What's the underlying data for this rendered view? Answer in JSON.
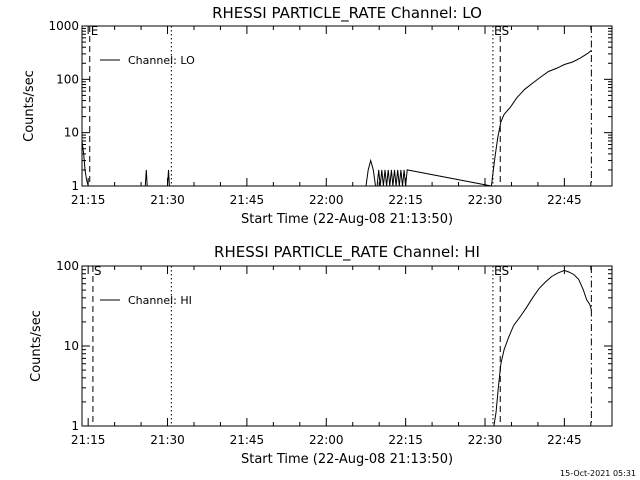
{
  "footer_timestamp": "15-Oct-2021 05:31",
  "chart_data": [
    {
      "type": "line",
      "title": "RHESSI PARTICLE_RATE Channel: LO",
      "xlabel": "Start Time (22-Aug-08 21:13:50)",
      "ylabel": "Counts/sec",
      "yscale": "log",
      "ylim": [
        1,
        1000
      ],
      "xlim": [
        21.2306,
        22.9
      ],
      "xticks": [
        21.25,
        21.5,
        21.75,
        22.0,
        22.25,
        22.5,
        22.75
      ],
      "xtick_labels": [
        "21:15",
        "21:30",
        "21:45",
        "22:00",
        "22:15",
        "22:30",
        "22:45"
      ],
      "yticks": [
        1,
        10,
        100,
        1000
      ],
      "ytick_labels": [
        "1",
        "10",
        "100",
        "1000"
      ],
      "legend": {
        "label": "Channel: LO",
        "placement": "top-left"
      },
      "markers": [
        {
          "x": 21.255,
          "style": "dashed",
          "label": "E"
        },
        {
          "x": 21.512,
          "style": "dotted",
          "label": ""
        },
        {
          "x": 22.525,
          "style": "dotted",
          "label": "ES"
        },
        {
          "x": 22.548,
          "style": "dashed",
          "label": ""
        },
        {
          "x": 22.835,
          "style": "dashdot",
          "label": ""
        }
      ],
      "series": [
        {
          "name": "Channel: LO",
          "x": [
            21.2306,
            21.236,
            21.24,
            21.245,
            21.25,
            21.43,
            21.433,
            21.436,
            21.5,
            21.503,
            21.506,
            22.125,
            22.132,
            22.14,
            22.148,
            22.155,
            22.16,
            22.165,
            22.17,
            22.175,
            22.18,
            22.185,
            22.19,
            22.195,
            22.2,
            22.205,
            22.21,
            22.215,
            22.22,
            22.225,
            22.23,
            22.235,
            22.24,
            22.245,
            22.25,
            22.255,
            22.52,
            22.53,
            22.54,
            22.55,
            22.56,
            22.58,
            22.6,
            22.625,
            22.65,
            22.675,
            22.7,
            22.725,
            22.75,
            22.775,
            22.8,
            22.825,
            22.835
          ],
          "values": [
            7,
            4,
            2,
            1.3,
            1,
            1,
            2,
            1,
            1,
            2,
            1,
            1,
            2,
            3,
            2,
            1,
            1,
            2,
            1,
            2,
            1,
            2,
            1,
            2,
            1,
            2,
            1,
            2,
            1,
            2,
            1,
            2,
            1,
            2,
            1,
            2,
            1,
            3,
            8,
            16,
            22,
            30,
            45,
            65,
            85,
            110,
            140,
            160,
            190,
            210,
            250,
            310,
            350
          ]
        }
      ]
    },
    {
      "type": "line",
      "title": "RHESSI PARTICLE_RATE Channel: HI",
      "xlabel": "Start Time (22-Aug-08 21:13:50)",
      "ylabel": "Counts/sec",
      "yscale": "log",
      "ylim": [
        1,
        100
      ],
      "xlim": [
        21.2306,
        22.9
      ],
      "xticks": [
        21.25,
        21.5,
        21.75,
        22.0,
        22.25,
        22.5,
        22.75
      ],
      "xtick_labels": [
        "21:15",
        "21:30",
        "21:45",
        "22:00",
        "22:15",
        "22:30",
        "22:45"
      ],
      "yticks": [
        1,
        10,
        100
      ],
      "ytick_labels": [
        "1",
        "10",
        "100"
      ],
      "legend": {
        "label": "Channel: HI",
        "placement": "top-left"
      },
      "markers": [
        {
          "x": 21.265,
          "style": "dashed",
          "label": "S"
        },
        {
          "x": 21.512,
          "style": "dotted",
          "label": ""
        },
        {
          "x": 22.525,
          "style": "dotted",
          "label": "ES"
        },
        {
          "x": 22.548,
          "style": "dashed",
          "label": ""
        },
        {
          "x": 22.835,
          "style": "dashdot",
          "label": ""
        }
      ],
      "series": [
        {
          "name": "Channel: HI",
          "x": [
            22.528,
            22.535,
            22.542,
            22.55,
            22.56,
            22.575,
            22.59,
            22.61,
            22.63,
            22.65,
            22.67,
            22.69,
            22.71,
            22.73,
            22.75,
            22.765,
            22.78,
            22.795,
            22.81,
            22.82,
            22.83,
            22.835
          ],
          "values": [
            1,
            1.5,
            3,
            6,
            9,
            13,
            18,
            23,
            30,
            40,
            52,
            63,
            74,
            82,
            88,
            84,
            78,
            68,
            50,
            38,
            33,
            28
          ]
        }
      ]
    }
  ]
}
